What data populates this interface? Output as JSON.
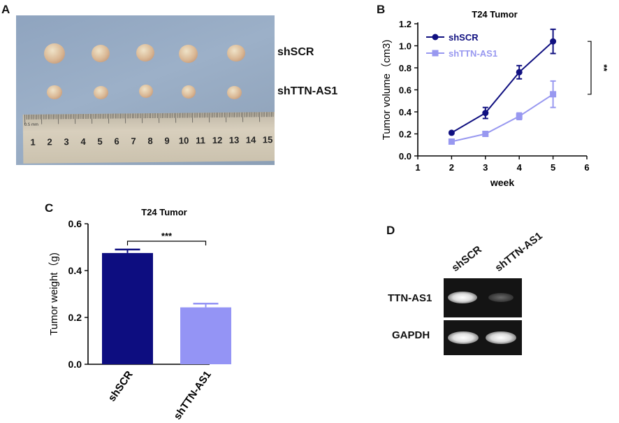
{
  "panels": {
    "a": {
      "letter": "A",
      "row_labels": [
        "shSCR",
        "shTTN-AS1"
      ],
      "ruler_numbers": [
        "1",
        "2",
        "3",
        "4",
        "5",
        "6",
        "7",
        "8",
        "9",
        "10",
        "11",
        "12",
        "13",
        "14",
        "15"
      ],
      "ruler_small_text": "0.5 mm"
    },
    "b": {
      "letter": "B"
    },
    "c": {
      "letter": "C"
    },
    "d": {
      "letter": "D",
      "lane_labels": [
        "shSCR",
        "shTTN-AS1"
      ],
      "row_labels": [
        "TTN-AS1",
        "GAPDH"
      ]
    }
  },
  "colors": {
    "series_dark": "#101080",
    "series_light": "#9898f0",
    "bar_dark": "#0d0d80",
    "bar_light": "#9494f5"
  },
  "chart_data": [
    {
      "id": "B",
      "type": "line",
      "title": "T24 Tumor",
      "xlabel": "week",
      "ylabel": "Tumor volume（cm3)",
      "xlim": [
        1,
        6
      ],
      "ylim": [
        0,
        1.2
      ],
      "xticks": [
        "1",
        "2",
        "3",
        "4",
        "5",
        "6"
      ],
      "yticks": [
        "0.0",
        "0.2",
        "0.4",
        "0.6",
        "0.8",
        "1.0",
        "1.2"
      ],
      "x": [
        2,
        3,
        4,
        5
      ],
      "series": [
        {
          "name": "shSCR",
          "values": [
            0.21,
            0.39,
            0.76,
            1.04
          ],
          "errors": [
            0.01,
            0.05,
            0.06,
            0.11
          ]
        },
        {
          "name": "shTTN-AS1",
          "values": [
            0.13,
            0.2,
            0.36,
            0.56
          ],
          "errors": [
            0.01,
            0.02,
            0.03,
            0.12
          ]
        }
      ],
      "significance": "**",
      "legend": "top-left"
    },
    {
      "id": "C",
      "type": "bar",
      "title": "T24 Tumor",
      "xlabel": "",
      "ylabel": "Tumor weight（g)",
      "ylim": [
        0,
        0.6
      ],
      "yticks": [
        "0.0",
        "0.2",
        "0.4",
        "0.6"
      ],
      "categories": [
        "shSCR",
        "shTTN-AS1"
      ],
      "values": [
        0.475,
        0.243
      ],
      "errors": [
        0.015,
        0.016
      ],
      "significance": "***"
    }
  ]
}
